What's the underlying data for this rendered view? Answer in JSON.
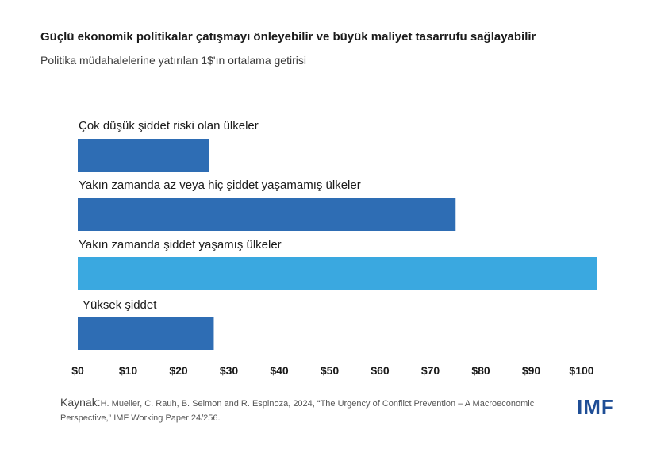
{
  "title": "Güçlü ekonomik politikalar çatışmayı önleyebilir ve büyük maliyet tasarrufu sağlayabilir",
  "subtitle": "Politika müdahalelerine yatırılan 1$'ın ortalama getirisi",
  "source": {
    "label": "Kaynak:",
    "text": "H. Mueller, C. Rauh, B. Seimon and R. Espinoza, 2024, “The Urgency of Conflict Prevention – A Macroeconomic Perspective,” IMF Working Paper 24/256."
  },
  "logo": "IMF",
  "chart_data": {
    "type": "bar",
    "orientation": "horizontal",
    "categories": [
      "Çok düşük şiddet riski olan ülkeler",
      "Yakın zamanda az veya hiç şiddet yaşamamış ülkeler",
      "Yakın zamanda şiddet yaşamış ülkeler",
      "Yüksek şiddet"
    ],
    "values": [
      26,
      75,
      103,
      27
    ],
    "colors": [
      "#2e6db4",
      "#2e6db4",
      "#3aa8e0",
      "#2e6db4"
    ],
    "xlim": [
      0,
      105
    ],
    "ticks": [
      0,
      10,
      20,
      30,
      40,
      50,
      60,
      70,
      80,
      90,
      100
    ],
    "tick_labels": [
      "$0",
      "$10",
      "$20",
      "$30",
      "$40",
      "$50",
      "$60",
      "$70",
      "$80",
      "$90",
      "$100"
    ],
    "grid": false
  }
}
